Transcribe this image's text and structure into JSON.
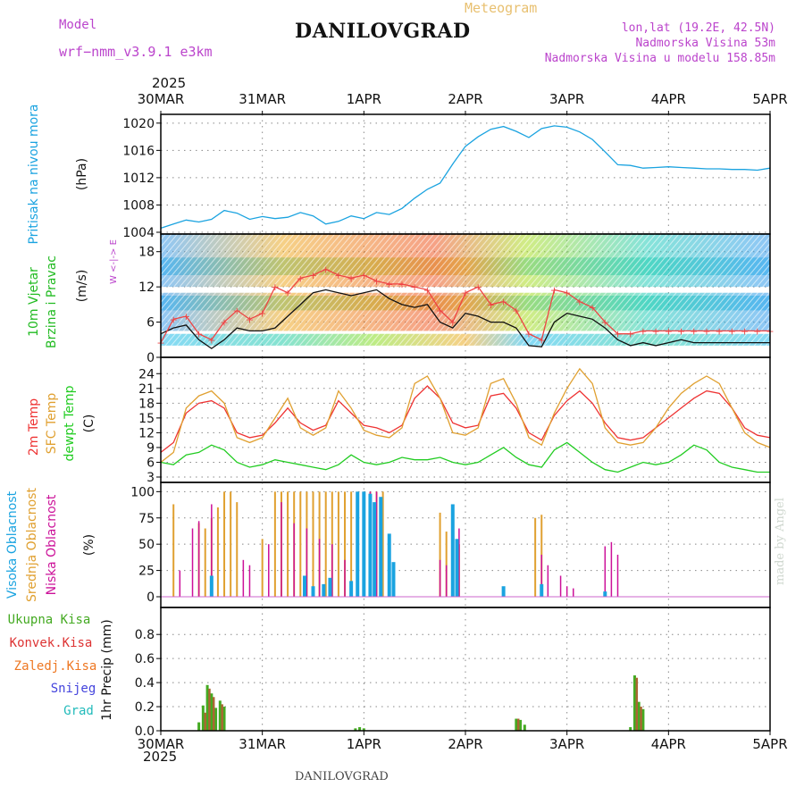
{
  "header": {
    "model_label": "Model",
    "model_name": "wrf−nmm_v3.9.1  e3km",
    "meteogram": "Meteogram",
    "title": "DANILOVGRAD",
    "lonlat": "lon,lat (19.2E, 42.5N)",
    "altitude": "Nadmorska Visina 53m",
    "model_altitude": "Nadmorska Visina u modelu 158.85m",
    "bottom_title": "DANILOVGRAD",
    "credit": "made by Angel",
    "year_top": "2025",
    "year_bottom": "2025"
  },
  "colors": {
    "pressure": "#1aa3e0",
    "wind_label": "#22bb22",
    "t2m": "#ee3333",
    "tsfc": "#e0a030",
    "dewpt": "#22cc22",
    "cloud_high": "#1aa3e0",
    "cloud_mid": "#e0a030",
    "cloud_low": "#cc1199",
    "precip_total": "#44aa22",
    "precip_conv": "#dd3333",
    "precip_frz": "#ee7722",
    "snow": "#4444dd",
    "hail": "#22bbbb",
    "header": "#bb44cc"
  },
  "chart_data": {
    "type": "meteogram",
    "x_labels": [
      "30MAR",
      "31MAR",
      "1APR",
      "2APR",
      "3APR",
      "4APR",
      "5APR"
    ],
    "time_range_hours": [
      0,
      144
    ],
    "panels": [
      {
        "name": "pressure",
        "type": "line",
        "ylabel": "Pritisak na nivou mora",
        "unit": "(hPa)",
        "ylim": [
          1004,
          1020.5
        ],
        "yticks": [
          1004,
          1008,
          1012,
          1016,
          1020
        ],
        "series": [
          {
            "name": "Pritisak na nivou mora",
            "x": [
              0,
              3,
              6,
              9,
              12,
              15,
              18,
              21,
              24,
              27,
              30,
              33,
              36,
              39,
              42,
              45,
              48,
              51,
              54,
              57,
              60,
              63,
              66,
              69,
              72,
              75,
              78,
              81,
              84,
              87,
              90,
              93,
              96,
              99,
              102,
              105,
              108,
              111,
              114,
              117,
              120,
              123,
              126,
              129,
              132,
              135,
              138,
              141,
              144
            ],
            "y": [
              1004.6,
              1005.2,
              1005.8,
              1005.5,
              1005.9,
              1007.2,
              1006.8,
              1005.9,
              1006.3,
              1006.0,
              1006.2,
              1006.9,
              1006.4,
              1005.2,
              1005.6,
              1006.4,
              1006.0,
              1006.9,
              1006.6,
              1007.5,
              1009.0,
              1010.3,
              1011.2,
              1014.0,
              1016.6,
              1018.0,
              1019.1,
              1019.5,
              1018.8,
              1017.9,
              1019.2,
              1019.6,
              1019.4,
              1018.7,
              1017.6,
              1015.8,
              1013.9,
              1013.8,
              1013.4,
              1013.5,
              1013.6,
              1013.5,
              1013.4,
              1013.3,
              1013.3,
              1013.2,
              1013.2,
              1013.1,
              1013.4
            ]
          }
        ]
      },
      {
        "name": "wind",
        "type": "line",
        "ylabel": "10m Vjetar Brzina i Pravac",
        "unit": "(m/s)",
        "ylim": [
          0,
          21
        ],
        "yticks": [
          0,
          6,
          12,
          18
        ],
        "compass": "W <-|-> E",
        "series": [
          {
            "name": "10m wind speed",
            "x": [
              0,
              3,
              6,
              9,
              12,
              15,
              18,
              21,
              24,
              27,
              30,
              33,
              36,
              39,
              42,
              45,
              48,
              51,
              54,
              57,
              60,
              63,
              66,
              69,
              72,
              75,
              78,
              81,
              84,
              87,
              90,
              93,
              96,
              99,
              102,
              105,
              108,
              111,
              114,
              117,
              120,
              123,
              126,
              129,
              132,
              135,
              138,
              141,
              144
            ],
            "y": [
              4,
              5,
              5.5,
              3,
              1.5,
              3,
              5,
              4.5,
              4.5,
              5,
              7,
              9,
              11,
              11.5,
              11,
              10.5,
              11,
              11.5,
              10,
              9,
              8.5,
              9,
              6,
              5,
              7.5,
              7,
              6,
              6,
              5,
              2,
              1.8,
              6,
              7.5,
              7,
              6.5,
              5,
              3,
              2,
              2.5,
              2,
              2.5,
              3,
              2.5,
              2.5,
              2.5,
              2.5,
              2.5,
              2.5,
              2.5
            ]
          },
          {
            "name": "wind gust",
            "x": [
              0,
              3,
              6,
              9,
              12,
              15,
              18,
              21,
              24,
              27,
              30,
              33,
              36,
              39,
              42,
              45,
              48,
              51,
              54,
              57,
              60,
              63,
              66,
              69,
              72,
              75,
              78,
              81,
              84,
              87,
              90,
              93,
              96,
              99,
              102,
              105,
              108,
              111,
              114,
              117,
              120,
              123,
              126,
              129,
              132,
              135,
              138,
              141,
              144
            ],
            "y": [
              2.5,
              6.5,
              7,
              4,
              3,
              6,
              8,
              6.5,
              7.5,
              12,
              11,
              13.5,
              14,
              15,
              14,
              13.5,
              14,
              13,
              12.5,
              12.5,
              12,
              11.5,
              8,
              6,
              11,
              12,
              9,
              9.5,
              8,
              4,
              3,
              11.5,
              11,
              9.5,
              8.5,
              6,
              4,
              4,
              4.5,
              4.5,
              4.5,
              4.5,
              4.5,
              4.5,
              4.5,
              4.5,
              4.5,
              4.5,
              4.5
            ]
          }
        ]
      },
      {
        "name": "temperature",
        "type": "line",
        "ylabel": "2m Temp",
        "ylabel2": "SFC Temp",
        "ylabel3": "dewpt Temp",
        "unit": "(C)",
        "ylim": [
          3,
          25.5
        ],
        "yticks": [
          3,
          6,
          9,
          12,
          15,
          18,
          21,
          24
        ],
        "series": [
          {
            "name": "2m Temp",
            "x": [
              0,
              3,
              6,
              9,
              12,
              15,
              18,
              21,
              24,
              27,
              30,
              33,
              36,
              39,
              42,
              45,
              48,
              51,
              54,
              57,
              60,
              63,
              66,
              69,
              72,
              75,
              78,
              81,
              84,
              87,
              90,
              93,
              96,
              99,
              102,
              105,
              108,
              111,
              114,
              117,
              120,
              123,
              126,
              129,
              132,
              135,
              138,
              141,
              144
            ],
            "y": [
              8,
              10,
              16,
              18,
              18.5,
              17,
              12,
              11,
              11.5,
              14,
              17,
              14,
              12.5,
              13.5,
              18.5,
              16,
              13.5,
              13,
              12,
              13.5,
              19,
              21.5,
              19,
              14,
              13,
              13.5,
              19.5,
              20,
              17,
              12,
              10.5,
              15.5,
              18.5,
              20.5,
              18,
              14,
              11,
              10.5,
              11,
              13,
              15,
              17,
              19,
              20.5,
              20,
              17,
              13,
              11.5,
              11
            ]
          },
          {
            "name": "SFC Temp",
            "x": [
              0,
              3,
              6,
              9,
              12,
              15,
              18,
              21,
              24,
              27,
              30,
              33,
              36,
              39,
              42,
              45,
              48,
              51,
              54,
              57,
              60,
              63,
              66,
              69,
              72,
              75,
              78,
              81,
              84,
              87,
              90,
              93,
              96,
              99,
              102,
              105,
              108,
              111,
              114,
              117,
              120,
              123,
              126,
              129,
              132,
              135,
              138,
              141,
              144
            ],
            "y": [
              6,
              8,
              17,
              19.5,
              20.5,
              18,
              11,
              10,
              11,
              15,
              19,
              13,
              11.5,
              13,
              20.5,
              17,
              12.5,
              11.5,
              11,
              13,
              22,
              23.5,
              19,
              12,
              11.5,
              13,
              22,
              23,
              18,
              11,
              9.5,
              16,
              21,
              25,
              22,
              13,
              10,
              9.5,
              10,
              13,
              17,
              20,
              22,
              23.5,
              22,
              17,
              12,
              10,
              9
            ]
          },
          {
            "name": "dewpt Temp",
            "x": [
              0,
              3,
              6,
              9,
              12,
              15,
              18,
              21,
              24,
              27,
              30,
              33,
              36,
              39,
              42,
              45,
              48,
              51,
              54,
              57,
              60,
              63,
              66,
              69,
              72,
              75,
              78,
              81,
              84,
              87,
              90,
              93,
              96,
              99,
              102,
              105,
              108,
              111,
              114,
              117,
              120,
              123,
              126,
              129,
              132,
              135,
              138,
              141,
              144
            ],
            "y": [
              6,
              5.5,
              7.5,
              8,
              9.5,
              8.5,
              6,
              5,
              5.5,
              6.5,
              6,
              5.5,
              5,
              4.5,
              5.5,
              7.5,
              6,
              5.5,
              6,
              7,
              6.5,
              6.5,
              7,
              6,
              5.5,
              6,
              7.5,
              9,
              7,
              5.5,
              5,
              8.5,
              10,
              8,
              6,
              4.5,
              4,
              5,
              6,
              5.5,
              6,
              7.5,
              9.5,
              8.5,
              6,
              5,
              4.5,
              4,
              4
            ]
          }
        ]
      },
      {
        "name": "clouds",
        "type": "bar",
        "ylabel": "Visoka Oblacnost",
        "ylabel2": "Srednja Oblacnost",
        "ylabel3": "Niska Oblacnost",
        "unit": "(%)",
        "ylim": [
          0,
          102
        ],
        "yticks": [
          0,
          25,
          50,
          75,
          100
        ],
        "series": [
          {
            "name": "Srednja Oblacnost",
            "x": [
              3,
              9,
              10.5,
              12,
              13.5,
              15,
              16.5,
              18,
              24,
              27,
              28.5,
              30,
              31.5,
              33,
              34.5,
              36,
              37.5,
              39,
              40.5,
              42,
              43.5,
              45,
              46.5,
              48,
              49.5,
              51,
              52.5,
              66,
              67.5,
              69,
              70.5,
              88.5,
              90
            ],
            "values": [
              88,
              70,
              65,
              75,
              85,
              100,
              100,
              90,
              55,
              100,
              100,
              100,
              100,
              100,
              100,
              100,
              100,
              100,
              100,
              100,
              100,
              100,
              100,
              100,
              100,
              100,
              100,
              80,
              62,
              55,
              50,
              75,
              78
            ]
          },
          {
            "name": "Niska Oblacnost",
            "x": [
              4.5,
              7.5,
              9,
              12,
              19.5,
              21,
              25.5,
              28.5,
              31.5,
              34.5,
              37.5,
              40.5,
              43.5,
              46.5,
              48,
              49.5,
              51,
              66,
              67.5,
              69,
              70.5,
              90,
              91.5,
              94.5,
              96,
              97.5,
              105,
              106.5,
              108
            ],
            "values": [
              25,
              65,
              72,
              88,
              35,
              30,
              50,
              90,
              70,
              65,
              55,
              50,
              35,
              90,
              80,
              100,
              100,
              35,
              30,
              70,
              65,
              40,
              30,
              20,
              10,
              8,
              48,
              52,
              40
            ]
          },
          {
            "name": "Visoka Oblacnost",
            "x": [
              12,
              21.5,
              34,
              36,
              38.5,
              40,
              45,
              46.5,
              48,
              49.5,
              50.5,
              52,
              54,
              55,
              69,
              70,
              81,
              90,
              105
            ],
            "values": [
              20,
              0,
              20,
              10,
              12,
              18,
              15,
              100,
              100,
              98,
              90,
              95,
              60,
              33,
              88,
              55,
              10,
              12,
              5
            ]
          }
        ]
      },
      {
        "name": "precip",
        "type": "bar",
        "ylabel": "1hr Precip (mm)",
        "ylim": [
          0,
          0.95
        ],
        "yticks": [
          0.0,
          0.2,
          0.4,
          0.6,
          0.8
        ],
        "legend": [
          "Ukupna Kisa",
          "Konvek.Kisa",
          "Zaledj.Kisa",
          "Snijeg",
          "Grad"
        ],
        "series": [
          {
            "name": "Ukupna Kisa",
            "x": [
              9,
              10,
              11,
              12,
              13,
              14,
              15,
              46,
              47,
              48,
              84,
              85,
              86,
              111,
              112,
              113,
              114
            ],
            "values": [
              0.07,
              0.21,
              0.38,
              0.31,
              0.19,
              0.25,
              0.2,
              0.02,
              0.03,
              0.02,
              0.1,
              0.09,
              0.05,
              0.03,
              0.46,
              0.24,
              0.18
            ]
          },
          {
            "name": "Konvek.Kisa",
            "x": [
              10.5,
              11.5,
              12.5,
              14.5,
              84.5,
              112.5,
              113.5
            ],
            "values": [
              0.15,
              0.35,
              0.28,
              0.22,
              0.1,
              0.44,
              0.2
            ]
          }
        ]
      }
    ]
  }
}
